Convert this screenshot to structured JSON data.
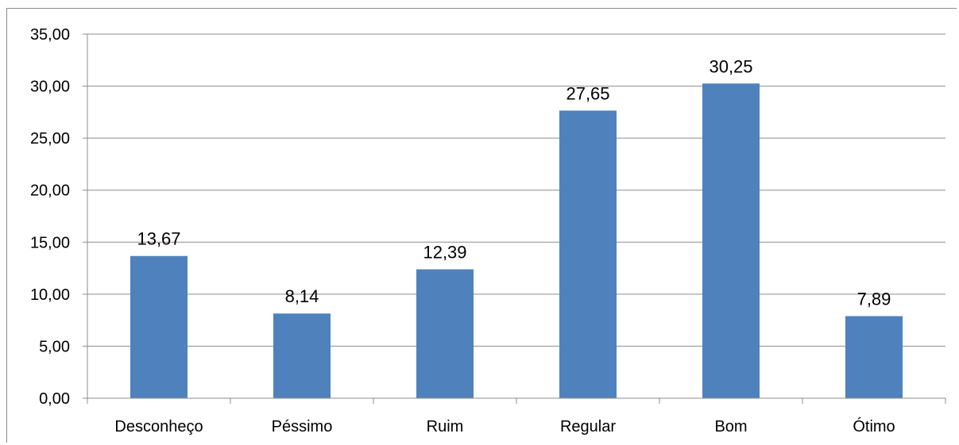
{
  "chart_data": {
    "type": "bar",
    "categories": [
      "Desconheço",
      "Péssimo",
      "Ruim",
      "Regular",
      "Bom",
      "Ótimo"
    ],
    "values": [
      13.67,
      8.14,
      12.39,
      27.65,
      30.25,
      7.89
    ],
    "data_labels": [
      "13,67",
      "8,14",
      "12,39",
      "27,65",
      "30,25",
      "7,89"
    ],
    "yticks": [
      0,
      5,
      10,
      15,
      20,
      25,
      30,
      35
    ],
    "ytick_labels": [
      "0,00",
      "5,00",
      "10,00",
      "15,00",
      "20,00",
      "25,00",
      "30,00",
      "35,00"
    ],
    "ylim": [
      0,
      35
    ],
    "title": "",
    "xlabel": "",
    "ylabel": "",
    "grid": true,
    "legend": "none",
    "bar_color": "#4f81bd",
    "grid_color": "#8c8c8c"
  }
}
